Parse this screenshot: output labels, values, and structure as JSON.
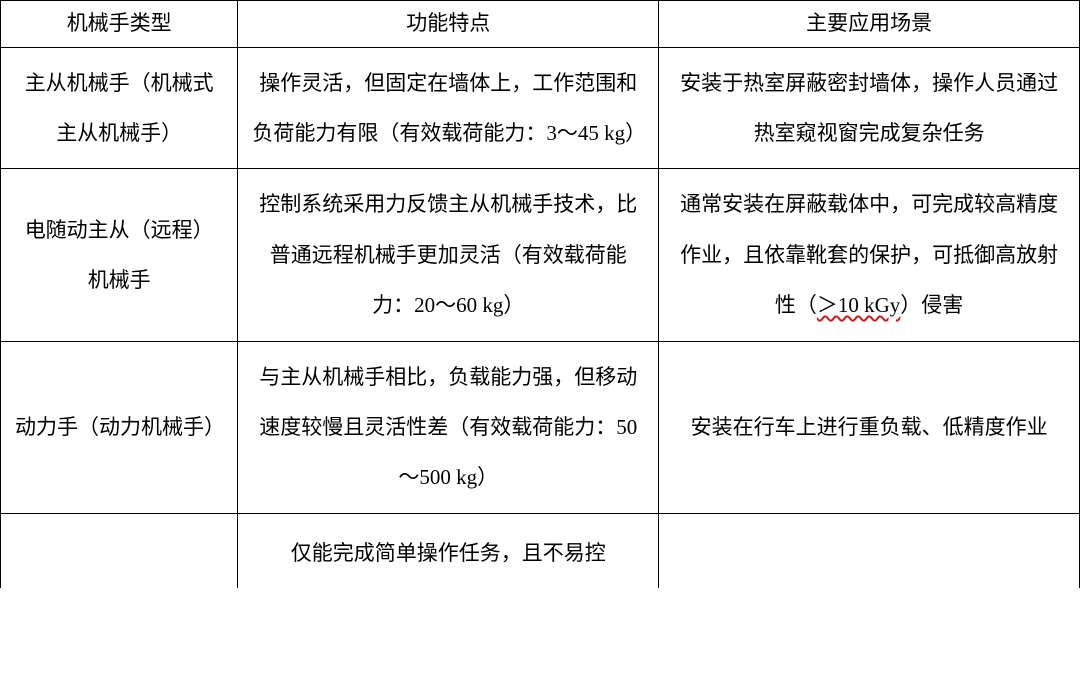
{
  "table": {
    "type": "table",
    "border_color": "#000000",
    "background_color": "#ffffff",
    "text_color": "#000000",
    "font_family": "SimSun",
    "font_size_pt": 16,
    "line_height": 2.4,
    "columns": [
      {
        "key": "type",
        "header": "机械手类型",
        "width_pct": 22,
        "align": "center"
      },
      {
        "key": "feature",
        "header": "功能特点",
        "width_pct": 39,
        "align": "center"
      },
      {
        "key": "scenario",
        "header": "主要应用场景",
        "width_pct": 39,
        "align": "center"
      }
    ],
    "rows": [
      {
        "type": "主从机械手（机械式主从机械手）",
        "feature": "操作灵活，但固定在墙体上，工作范围和负荷能力有限（有效载荷能力：3～45 kg）",
        "scenario": "安装于热室屏蔽密封墙体，操作人员通过热室窥视窗完成复杂任务"
      },
      {
        "type": "电随动主从（远程）机械手",
        "feature": "控制系统采用力反馈主从机械手技术，比普通远程机械手更加灵活（有效载荷能力：20～60 kg）",
        "scenario_prefix": "通常安装在屏蔽载体中，可完成较高精度作业，且依靠靴套的保护，可抵御高放射性（",
        "scenario_wavy": "＞10 kGy",
        "scenario_suffix": "）侵害",
        "wavy_underline_color": "#d11a1a"
      },
      {
        "type": "动力手（动力机械手）",
        "feature": "与主从机械手相比，负载能力强，但移动速度较慢且灵活性差（有效载荷能力：50～500 kg）",
        "scenario": "安装在行车上进行重负载、低精度作业"
      }
    ],
    "clipped_row": {
      "type": "",
      "feature": "仅能完成简单操作任务，且不易控",
      "scenario": ""
    }
  }
}
